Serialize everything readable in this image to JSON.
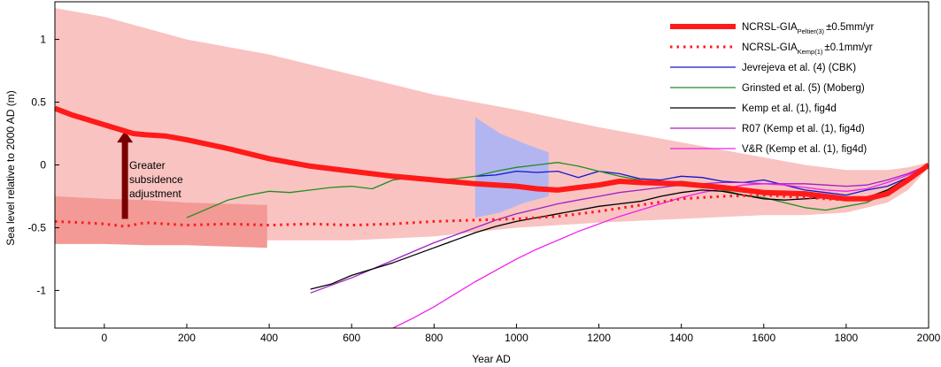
{
  "chart_data": {
    "type": "line",
    "xlabel": "Year AD",
    "ylabel": "Sea level relative to 2000 AD (m)",
    "xlim": [
      -120,
      2000
    ],
    "ylim": [
      -1.3,
      1.3
    ],
    "xticks": [
      0,
      200,
      400,
      600,
      800,
      1000,
      1200,
      1400,
      1600,
      1800,
      2000
    ],
    "yticks": [
      1,
      0.5,
      0,
      -0.5,
      -1
    ],
    "xtick_labels": [
      "0",
      "200",
      "400",
      "600",
      "800",
      "1000",
      "1200",
      "1400",
      "1600",
      "1800",
      "2000"
    ],
    "ytick_labels": [
      "1",
      "0.5",
      "0",
      "-0.5",
      "-1"
    ],
    "grid": false,
    "legend_position": "top-right",
    "annotation": {
      "lines": [
        "Greater",
        "subsidence",
        "adjustment"
      ],
      "arrow_x": 50,
      "arrow_from_y": -0.43,
      "arrow_to_y": 0.27
    },
    "bands": [
      {
        "name": "peltier-uncertainty",
        "color": "#f9c3c1",
        "x": [
          -120,
          0,
          200,
          400,
          600,
          800,
          1000,
          1200,
          1400,
          1600,
          1700,
          1800,
          1900,
          1950,
          2000
        ],
        "upper": [
          1.25,
          1.18,
          1.0,
          0.88,
          0.72,
          0.56,
          0.44,
          0.3,
          0.18,
          0.06,
          0.0,
          -0.04,
          -0.04,
          -0.02,
          0.02
        ],
        "lower": [
          -0.63,
          -0.6,
          -0.58,
          -0.6,
          -0.6,
          -0.57,
          -0.5,
          -0.46,
          -0.43,
          -0.4,
          -0.4,
          -0.38,
          -0.3,
          -0.2,
          -0.02
        ]
      },
      {
        "name": "kemp-uncertainty",
        "color": "#f39996",
        "x": [
          -120,
          0,
          100,
          200,
          300,
          395
        ],
        "upper": [
          -0.25,
          -0.27,
          -0.28,
          -0.3,
          -0.31,
          -0.32
        ],
        "lower": [
          -0.63,
          -0.63,
          -0.64,
          -0.64,
          -0.65,
          -0.66
        ]
      },
      {
        "name": "jevrejeva-uncertainty",
        "color": "#b3b5f1",
        "x": [
          900,
          960,
          1020,
          1078
        ],
        "upper": [
          0.38,
          0.25,
          0.17,
          0.1
        ],
        "lower": [
          -0.42,
          -0.38,
          -0.3,
          -0.25
        ]
      }
    ],
    "series": [
      {
        "name": "NCRSL-GIA",
        "subscript": "Peltier(3)",
        "suffix": "±0.5mm/yr",
        "color": "#ff1a1a",
        "width": 6,
        "dash": "none",
        "x": [
          -120,
          -80,
          -40,
          0,
          40,
          70,
          100,
          150,
          200,
          300,
          400,
          500,
          600,
          700,
          800,
          900,
          1000,
          1050,
          1100,
          1150,
          1200,
          1250,
          1300,
          1400,
          1500,
          1600,
          1700,
          1750,
          1800,
          1850,
          1900,
          1950,
          2000
        ],
        "y": [
          0.45,
          0.4,
          0.36,
          0.32,
          0.28,
          0.25,
          0.24,
          0.23,
          0.2,
          0.13,
          0.05,
          -0.01,
          -0.05,
          -0.09,
          -0.12,
          -0.15,
          -0.17,
          -0.19,
          -0.2,
          -0.18,
          -0.16,
          -0.13,
          -0.14,
          -0.15,
          -0.18,
          -0.22,
          -0.23,
          -0.25,
          -0.27,
          -0.27,
          -0.23,
          -0.12,
          0.0
        ]
      },
      {
        "name": "NCRSL-GIA",
        "subscript": "Kemp(1)",
        "suffix": "±0.1mm/yr",
        "color": "#ff1a1a",
        "width": 3,
        "dash": "2.5,5",
        "x": [
          -120,
          -50,
          0,
          50,
          100,
          200,
          300,
          400,
          500,
          600,
          700,
          800,
          900,
          1000,
          1100,
          1200,
          1300,
          1400,
          1500,
          1600,
          1700,
          1800,
          1850,
          1900,
          1950,
          2000
        ],
        "y": [
          -0.45,
          -0.46,
          -0.47,
          -0.49,
          -0.46,
          -0.48,
          -0.47,
          -0.48,
          -0.47,
          -0.48,
          -0.47,
          -0.45,
          -0.44,
          -0.43,
          -0.41,
          -0.37,
          -0.32,
          -0.27,
          -0.25,
          -0.24,
          -0.26,
          -0.28,
          -0.27,
          -0.22,
          -0.12,
          0.0
        ]
      },
      {
        "name": "Jevrejeva et al. (4) (CBK)",
        "color": "#1414d2",
        "width": 1.3,
        "dash": "none",
        "x": [
          900,
          950,
          1000,
          1050,
          1100,
          1150,
          1200,
          1250,
          1300,
          1350,
          1400,
          1450,
          1500,
          1550,
          1600,
          1650,
          1700,
          1750,
          1800,
          1850,
          1900,
          1950,
          2000
        ],
        "y": [
          -0.09,
          -0.08,
          -0.05,
          -0.06,
          -0.05,
          -0.1,
          -0.05,
          -0.07,
          -0.11,
          -0.12,
          -0.09,
          -0.1,
          -0.13,
          -0.14,
          -0.12,
          -0.16,
          -0.2,
          -0.22,
          -0.24,
          -0.2,
          -0.17,
          -0.1,
          0.0
        ]
      },
      {
        "name": "Grinsted et al. (5) (Moberg)",
        "color": "#1f8f1f",
        "width": 1.3,
        "dash": "none",
        "x": [
          200,
          250,
          300,
          350,
          400,
          450,
          500,
          550,
          600,
          650,
          700,
          750,
          800,
          850,
          900,
          950,
          1000,
          1050,
          1100,
          1150,
          1200,
          1250,
          1300,
          1350,
          1400,
          1450,
          1500,
          1550,
          1600,
          1650,
          1700,
          1750,
          1800,
          1850,
          1900,
          1950,
          2000
        ],
        "y": [
          -0.42,
          -0.35,
          -0.28,
          -0.24,
          -0.21,
          -0.22,
          -0.2,
          -0.18,
          -0.17,
          -0.19,
          -0.12,
          -0.1,
          -0.12,
          -0.11,
          -0.09,
          -0.05,
          -0.02,
          0.0,
          0.02,
          -0.01,
          -0.05,
          -0.09,
          -0.12,
          -0.15,
          -0.13,
          -0.15,
          -0.2,
          -0.24,
          -0.26,
          -0.3,
          -0.34,
          -0.36,
          -0.33,
          -0.3,
          -0.22,
          -0.12,
          0.0
        ]
      },
      {
        "name": "Kemp et al. (1), fig4d",
        "color": "#000000",
        "width": 1.3,
        "dash": "none",
        "x": [
          500,
          550,
          600,
          650,
          700,
          750,
          800,
          850,
          900,
          950,
          1000,
          1050,
          1100,
          1150,
          1200,
          1250,
          1300,
          1350,
          1400,
          1450,
          1500,
          1550,
          1600,
          1650,
          1700,
          1750,
          1800,
          1850,
          1900,
          1950,
          2000
        ],
        "y": [
          -0.99,
          -0.95,
          -0.88,
          -0.83,
          -0.78,
          -0.72,
          -0.66,
          -0.6,
          -0.54,
          -0.49,
          -0.45,
          -0.42,
          -0.39,
          -0.36,
          -0.33,
          -0.31,
          -0.29,
          -0.25,
          -0.22,
          -0.2,
          -0.21,
          -0.24,
          -0.27,
          -0.28,
          -0.27,
          -0.26,
          -0.27,
          -0.26,
          -0.2,
          -0.1,
          0.0
        ]
      },
      {
        "name": "R07 (Kemp et al. (1), fig4d)",
        "color": "#a020c8",
        "width": 1.3,
        "dash": "none",
        "x": [
          500,
          550,
          600,
          650,
          700,
          750,
          800,
          850,
          900,
          950,
          1000,
          1050,
          1100,
          1150,
          1200,
          1250,
          1300,
          1350,
          1400,
          1450,
          1500,
          1550,
          1600,
          1650,
          1700,
          1750,
          1800,
          1850,
          1900,
          1950,
          2000
        ],
        "y": [
          -1.02,
          -0.96,
          -0.9,
          -0.83,
          -0.76,
          -0.69,
          -0.62,
          -0.56,
          -0.5,
          -0.44,
          -0.39,
          -0.35,
          -0.31,
          -0.28,
          -0.25,
          -0.22,
          -0.2,
          -0.18,
          -0.16,
          -0.15,
          -0.14,
          -0.14,
          -0.15,
          -0.15,
          -0.15,
          -0.16,
          -0.17,
          -0.16,
          -0.12,
          -0.07,
          0.0
        ]
      },
      {
        "name": "V&R (Kemp et al. (1), fig4d)",
        "color": "#f020f0",
        "width": 1.3,
        "dash": "none",
        "x": [
          700,
          750,
          800,
          850,
          900,
          950,
          1000,
          1050,
          1100,
          1150,
          1200,
          1250,
          1300,
          1350,
          1400,
          1450,
          1500,
          1550,
          1600,
          1650,
          1700,
          1750,
          1800,
          1850,
          1900,
          1950,
          2000
        ],
        "y": [
          -1.3,
          -1.22,
          -1.13,
          -1.03,
          -0.93,
          -0.84,
          -0.75,
          -0.67,
          -0.6,
          -0.53,
          -0.47,
          -0.41,
          -0.36,
          -0.31,
          -0.26,
          -0.22,
          -0.19,
          -0.16,
          -0.15,
          -0.16,
          -0.18,
          -0.2,
          -0.21,
          -0.19,
          -0.14,
          -0.08,
          0.0
        ]
      }
    ]
  }
}
